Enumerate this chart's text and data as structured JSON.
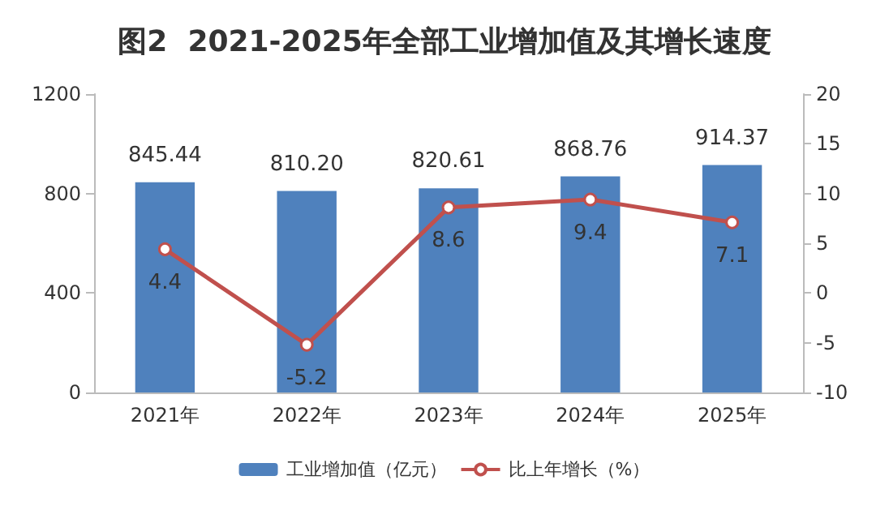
{
  "chart_data": {
    "type": "bar",
    "title": "图2  2021-2025年全部工业增加值及其增长速度",
    "categories": [
      "2021年",
      "2022年",
      "2023年",
      "2024年",
      "2025年"
    ],
    "series": [
      {
        "name": "工业增加值（亿元）",
        "color": "#4f81bd",
        "values": [
          845.44,
          810.2,
          820.61,
          868.76,
          914.37
        ],
        "value_labels": [
          "845.44",
          "810.20",
          "820.61",
          "868.76",
          "914.37"
        ]
      },
      {
        "name": "比上年增长（%）",
        "type": "line",
        "axis": "y2",
        "color": "#c0504d",
        "values": [
          4.4,
          -5.2,
          8.6,
          9.4,
          7.1
        ],
        "value_labels": [
          "4.4",
          "-5.2",
          "8.6",
          "9.4",
          "7.1"
        ]
      }
    ],
    "ylim": [
      0,
      1200
    ],
    "yticks": [
      0,
      400,
      800,
      1200
    ],
    "y2lim": [
      -10,
      20
    ],
    "y2ticks": [
      -10,
      -5,
      0,
      5,
      10,
      15,
      20
    ],
    "legend": "bottom",
    "marker": "circle"
  }
}
